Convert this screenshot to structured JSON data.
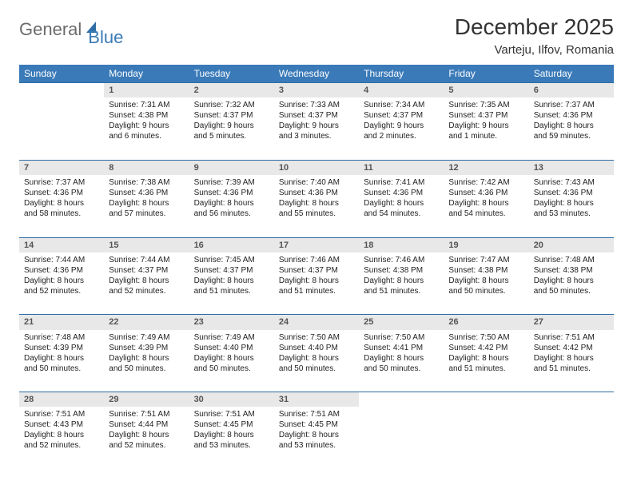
{
  "logo": {
    "general": "General",
    "blue": "Blue"
  },
  "title": "December 2025",
  "location": "Varteju, Ilfov, Romania",
  "colors": {
    "header_bg": "#3a7ab8",
    "header_text": "#ffffff",
    "daynum_bg": "#e8e8e8",
    "row_border": "#2e6da4",
    "logo_gray": "#6b6b6b",
    "logo_blue": "#3a7ab8"
  },
  "weekdays": [
    "Sunday",
    "Monday",
    "Tuesday",
    "Wednesday",
    "Thursday",
    "Friday",
    "Saturday"
  ],
  "weeks": [
    {
      "nums": [
        "",
        "1",
        "2",
        "3",
        "4",
        "5",
        "6"
      ],
      "cells": [
        null,
        {
          "sunrise": "Sunrise: 7:31 AM",
          "sunset": "Sunset: 4:38 PM",
          "daylight": "Daylight: 9 hours and 6 minutes."
        },
        {
          "sunrise": "Sunrise: 7:32 AM",
          "sunset": "Sunset: 4:37 PM",
          "daylight": "Daylight: 9 hours and 5 minutes."
        },
        {
          "sunrise": "Sunrise: 7:33 AM",
          "sunset": "Sunset: 4:37 PM",
          "daylight": "Daylight: 9 hours and 3 minutes."
        },
        {
          "sunrise": "Sunrise: 7:34 AM",
          "sunset": "Sunset: 4:37 PM",
          "daylight": "Daylight: 9 hours and 2 minutes."
        },
        {
          "sunrise": "Sunrise: 7:35 AM",
          "sunset": "Sunset: 4:37 PM",
          "daylight": "Daylight: 9 hours and 1 minute."
        },
        {
          "sunrise": "Sunrise: 7:37 AM",
          "sunset": "Sunset: 4:36 PM",
          "daylight": "Daylight: 8 hours and 59 minutes."
        }
      ]
    },
    {
      "nums": [
        "7",
        "8",
        "9",
        "10",
        "11",
        "12",
        "13"
      ],
      "cells": [
        {
          "sunrise": "Sunrise: 7:37 AM",
          "sunset": "Sunset: 4:36 PM",
          "daylight": "Daylight: 8 hours and 58 minutes."
        },
        {
          "sunrise": "Sunrise: 7:38 AM",
          "sunset": "Sunset: 4:36 PM",
          "daylight": "Daylight: 8 hours and 57 minutes."
        },
        {
          "sunrise": "Sunrise: 7:39 AM",
          "sunset": "Sunset: 4:36 PM",
          "daylight": "Daylight: 8 hours and 56 minutes."
        },
        {
          "sunrise": "Sunrise: 7:40 AM",
          "sunset": "Sunset: 4:36 PM",
          "daylight": "Daylight: 8 hours and 55 minutes."
        },
        {
          "sunrise": "Sunrise: 7:41 AM",
          "sunset": "Sunset: 4:36 PM",
          "daylight": "Daylight: 8 hours and 54 minutes."
        },
        {
          "sunrise": "Sunrise: 7:42 AM",
          "sunset": "Sunset: 4:36 PM",
          "daylight": "Daylight: 8 hours and 54 minutes."
        },
        {
          "sunrise": "Sunrise: 7:43 AM",
          "sunset": "Sunset: 4:36 PM",
          "daylight": "Daylight: 8 hours and 53 minutes."
        }
      ]
    },
    {
      "nums": [
        "14",
        "15",
        "16",
        "17",
        "18",
        "19",
        "20"
      ],
      "cells": [
        {
          "sunrise": "Sunrise: 7:44 AM",
          "sunset": "Sunset: 4:36 PM",
          "daylight": "Daylight: 8 hours and 52 minutes."
        },
        {
          "sunrise": "Sunrise: 7:44 AM",
          "sunset": "Sunset: 4:37 PM",
          "daylight": "Daylight: 8 hours and 52 minutes."
        },
        {
          "sunrise": "Sunrise: 7:45 AM",
          "sunset": "Sunset: 4:37 PM",
          "daylight": "Daylight: 8 hours and 51 minutes."
        },
        {
          "sunrise": "Sunrise: 7:46 AM",
          "sunset": "Sunset: 4:37 PM",
          "daylight": "Daylight: 8 hours and 51 minutes."
        },
        {
          "sunrise": "Sunrise: 7:46 AM",
          "sunset": "Sunset: 4:38 PM",
          "daylight": "Daylight: 8 hours and 51 minutes."
        },
        {
          "sunrise": "Sunrise: 7:47 AM",
          "sunset": "Sunset: 4:38 PM",
          "daylight": "Daylight: 8 hours and 50 minutes."
        },
        {
          "sunrise": "Sunrise: 7:48 AM",
          "sunset": "Sunset: 4:38 PM",
          "daylight": "Daylight: 8 hours and 50 minutes."
        }
      ]
    },
    {
      "nums": [
        "21",
        "22",
        "23",
        "24",
        "25",
        "26",
        "27"
      ],
      "cells": [
        {
          "sunrise": "Sunrise: 7:48 AM",
          "sunset": "Sunset: 4:39 PM",
          "daylight": "Daylight: 8 hours and 50 minutes."
        },
        {
          "sunrise": "Sunrise: 7:49 AM",
          "sunset": "Sunset: 4:39 PM",
          "daylight": "Daylight: 8 hours and 50 minutes."
        },
        {
          "sunrise": "Sunrise: 7:49 AM",
          "sunset": "Sunset: 4:40 PM",
          "daylight": "Daylight: 8 hours and 50 minutes."
        },
        {
          "sunrise": "Sunrise: 7:50 AM",
          "sunset": "Sunset: 4:40 PM",
          "daylight": "Daylight: 8 hours and 50 minutes."
        },
        {
          "sunrise": "Sunrise: 7:50 AM",
          "sunset": "Sunset: 4:41 PM",
          "daylight": "Daylight: 8 hours and 50 minutes."
        },
        {
          "sunrise": "Sunrise: 7:50 AM",
          "sunset": "Sunset: 4:42 PM",
          "daylight": "Daylight: 8 hours and 51 minutes."
        },
        {
          "sunrise": "Sunrise: 7:51 AM",
          "sunset": "Sunset: 4:42 PM",
          "daylight": "Daylight: 8 hours and 51 minutes."
        }
      ]
    },
    {
      "nums": [
        "28",
        "29",
        "30",
        "31",
        "",
        "",
        ""
      ],
      "cells": [
        {
          "sunrise": "Sunrise: 7:51 AM",
          "sunset": "Sunset: 4:43 PM",
          "daylight": "Daylight: 8 hours and 52 minutes."
        },
        {
          "sunrise": "Sunrise: 7:51 AM",
          "sunset": "Sunset: 4:44 PM",
          "daylight": "Daylight: 8 hours and 52 minutes."
        },
        {
          "sunrise": "Sunrise: 7:51 AM",
          "sunset": "Sunset: 4:45 PM",
          "daylight": "Daylight: 8 hours and 53 minutes."
        },
        {
          "sunrise": "Sunrise: 7:51 AM",
          "sunset": "Sunset: 4:45 PM",
          "daylight": "Daylight: 8 hours and 53 minutes."
        },
        null,
        null,
        null
      ]
    }
  ]
}
